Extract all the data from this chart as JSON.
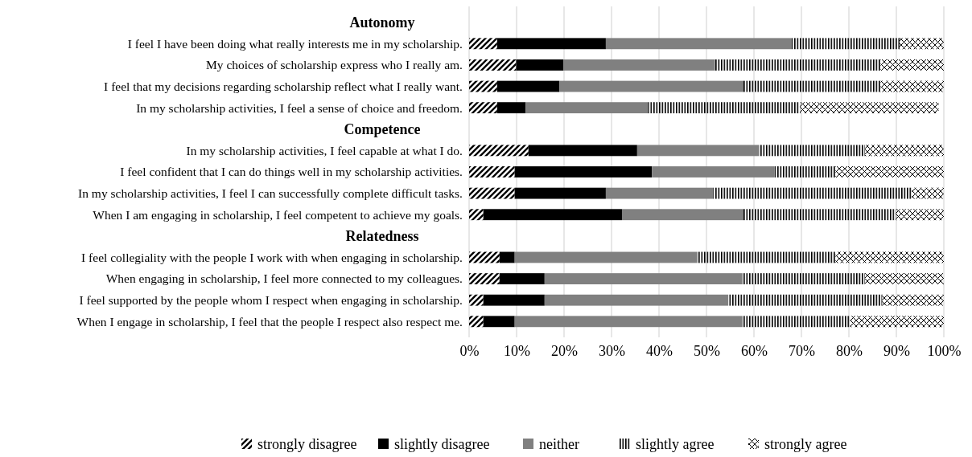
{
  "chart_data": {
    "type": "bar",
    "orientation": "horizontal",
    "stacked": true,
    "annotations": [
      "Autonomy",
      "Competence",
      "Relatedness"
    ],
    "categories": [
      null,
      "I feel I have been doing what really interests me in my scholarship.",
      "My choices of scholarship express who I really am.",
      "I feel that my decisions regarding scholarship reflect what I really want.",
      "In my scholarship activities, I feel a sense of choice and freedom.",
      null,
      "In my scholarship activities, I feel capable at what I do.",
      "I feel confident that I can do things well in my scholarship activities.",
      "In my scholarship activities, I feel I can successfully complete difficult tasks.",
      "When I am engaging in scholarship, I feel competent to achieve my goals.",
      null,
      "I feel collegiality with the people I work with when engaging in scholarship.",
      "When engaging in scholarship, I feel more connected to my colleagues.",
      "I feel supported by the people whom I respect when engaging in scholarship.",
      "When I engage in scholarship, I feel that the people I respect also respect me."
    ],
    "series": [
      {
        "name": "strongly disagree",
        "color": "#000000",
        "values": [
          null,
          5.9,
          9.9,
          5.9,
          5.9,
          null,
          12.5,
          9.6,
          9.6,
          3.0,
          null,
          6.4,
          6.4,
          3.0,
          3.0
        ]
      },
      {
        "name": "slightly disagree",
        "color": "#000000",
        "values": [
          null,
          22.9,
          10.0,
          13.1,
          6.0,
          null,
          22.9,
          28.9,
          19.2,
          29.2,
          null,
          3.2,
          9.5,
          12.9,
          6.6
        ]
      },
      {
        "name": "neither",
        "color": "#808080",
        "values": [
          null,
          39.0,
          31.9,
          38.8,
          25.8,
          null,
          25.7,
          25.8,
          22.6,
          25.6,
          null,
          38.5,
          41.7,
          38.7,
          48.0
        ]
      },
      {
        "name": "slightly agree",
        "color": "#000000",
        "values": [
          null,
          22.9,
          34.9,
          28.9,
          32.0,
          null,
          22.3,
          12.9,
          41.9,
          32.1,
          null,
          29.1,
          25.8,
          32.4,
          22.7
        ]
      },
      {
        "name": "strongly agree",
        "color": "#000000",
        "values": [
          null,
          9.3,
          13.3,
          13.3,
          29.2,
          null,
          16.6,
          22.8,
          6.7,
          10.1,
          null,
          22.8,
          16.6,
          13.0,
          19.7
        ]
      }
    ],
    "xlim": [
      0,
      100
    ],
    "xticks": [
      {
        "value": 0,
        "label": "0%"
      },
      {
        "value": 10,
        "label": "10%"
      },
      {
        "value": 20,
        "label": "20%"
      },
      {
        "value": 30,
        "label": "30%"
      },
      {
        "value": 40,
        "label": "40%"
      },
      {
        "value": 50,
        "label": "50%"
      },
      {
        "value": 60,
        "label": "60%"
      },
      {
        "value": 70,
        "label": "70%"
      },
      {
        "value": 80,
        "label": "80%"
      },
      {
        "value": 90,
        "label": "90%"
      },
      {
        "value": 100,
        "label": "100%"
      }
    ],
    "grid": "x",
    "legend": "bottom"
  }
}
